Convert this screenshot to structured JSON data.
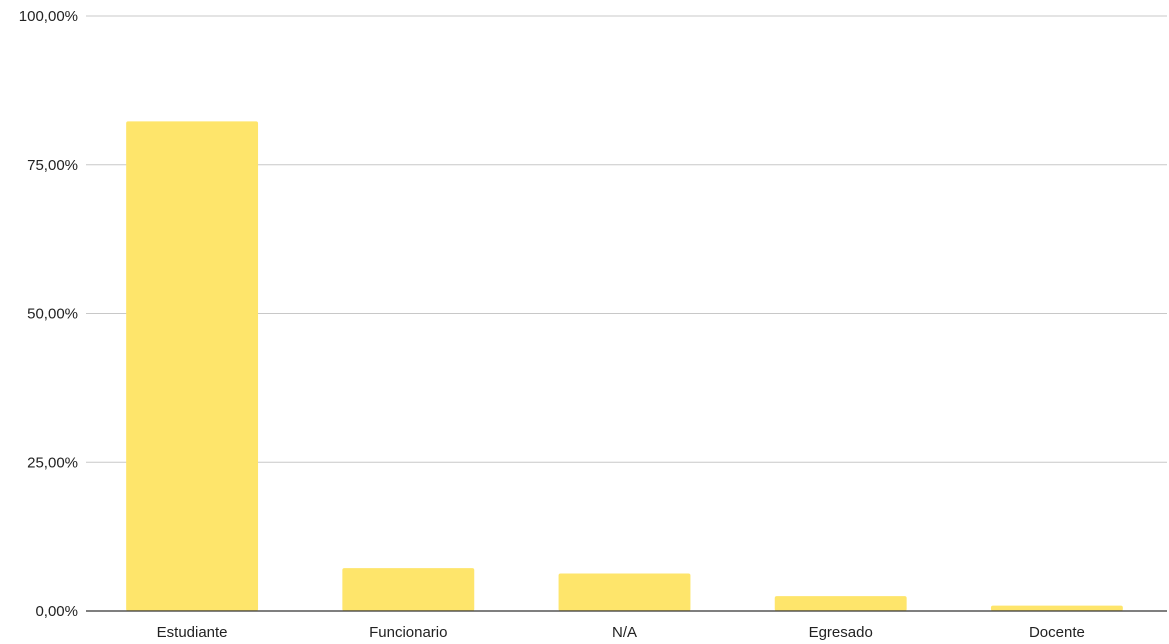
{
  "chart_data": {
    "type": "bar",
    "categories": [
      "Estudiante",
      "Funcionario",
      "N/A",
      "Egresado",
      "Docente"
    ],
    "values": [
      82.3,
      7.2,
      6.3,
      2.5,
      0.9
    ],
    "value_unit": "%",
    "ylim": [
      0,
      100
    ],
    "yticks": [
      "0,00%",
      "25,00%",
      "50,00%",
      "75,00%",
      "100,00%"
    ],
    "ytick_values": [
      0,
      25,
      50,
      75,
      100
    ],
    "grid": true,
    "legend": "none",
    "bar_color": "#fee56b"
  }
}
